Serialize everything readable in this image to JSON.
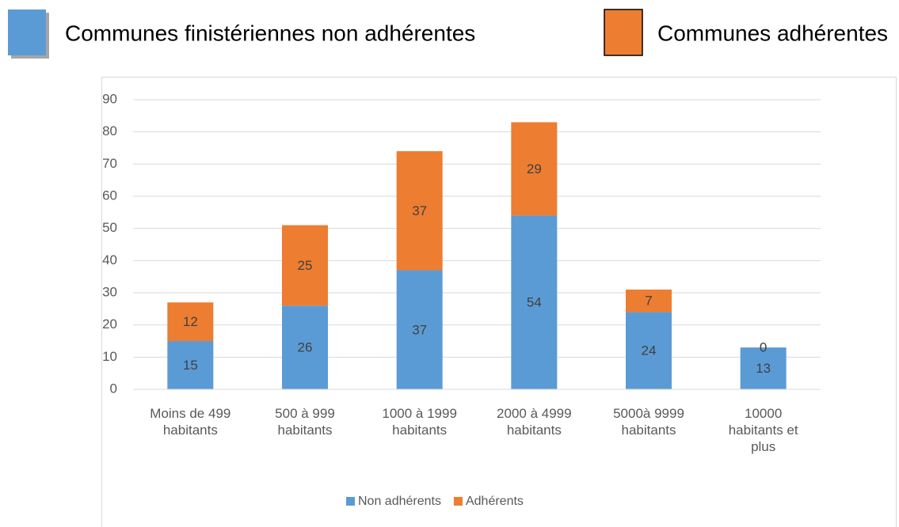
{
  "header": {
    "items": [
      {
        "label": "Communes finistériennes non adhérentes",
        "color": "#5b9bd5"
      },
      {
        "label": "Communes adhérentes",
        "color": "#ed7d31"
      }
    ]
  },
  "chart_data": {
    "type": "stacked_bar",
    "categories": [
      "Moins de 499 habitants",
      "500 à 999 habitants",
      "1000 à 1999 habitants",
      "2000 à 4999 habitants",
      "5000à 9999 habitants",
      "10000 habitants et plus"
    ],
    "series": [
      {
        "name": "Non adhérents",
        "color": "#5b9bd5",
        "values": [
          15,
          26,
          37,
          54,
          24,
          13
        ]
      },
      {
        "name": "Adhérents",
        "color": "#ed7d31",
        "values": [
          12,
          25,
          37,
          29,
          7,
          0
        ]
      }
    ],
    "ylim": [
      0,
      90
    ],
    "yticks": [
      0,
      10,
      20,
      30,
      40,
      50,
      60,
      70,
      80,
      90
    ],
    "grid": true,
    "legend": "bottom"
  }
}
